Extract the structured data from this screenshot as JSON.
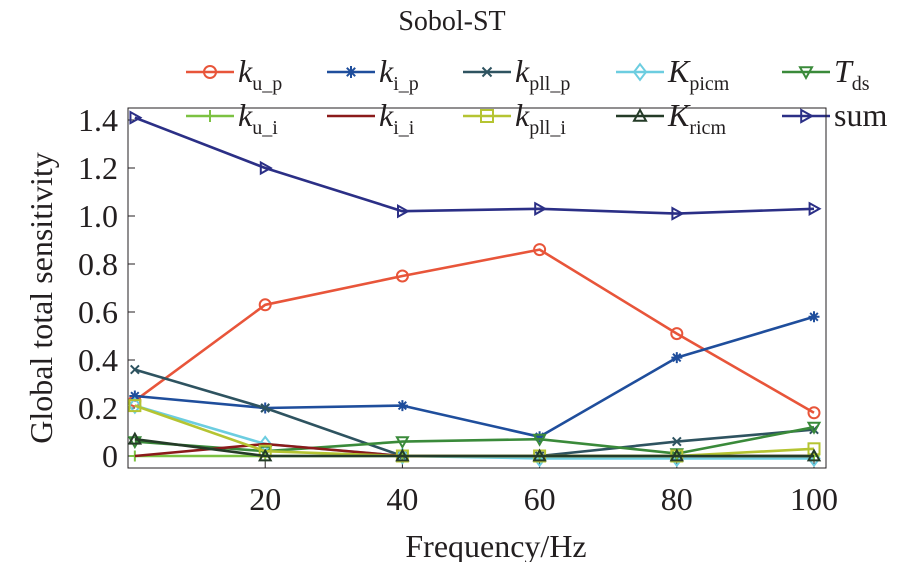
{
  "chart_data": {
    "type": "line",
    "title": "Sobol-ST",
    "xlabel": "Frequency/Hz",
    "ylabel": "Global total sensitivity",
    "xlim": [
      0,
      100
    ],
    "ylim": [
      0,
      1.4
    ],
    "xticks": [
      20,
      40,
      60,
      80,
      100
    ],
    "xtick_labels": [
      "20",
      "40",
      "60",
      "80",
      "100"
    ],
    "yticks": [
      0,
      0.2,
      0.4,
      0.6,
      0.8,
      1.0,
      1.2,
      1.4
    ],
    "ytick_labels": [
      "0",
      "0.2",
      "0.4",
      "0.6",
      "0.8",
      "1.0",
      "1.2",
      "1.4"
    ],
    "x": [
      1,
      20,
      40,
      60,
      80,
      100
    ],
    "legend_position": "top, 5 columns",
    "grid": false,
    "series": [
      {
        "name": "k",
        "sub": "u_p",
        "italic": true,
        "color": "#e8553a",
        "marker": "circle",
        "values": [
          0.23,
          0.63,
          0.75,
          0.86,
          0.51,
          0.18
        ]
      },
      {
        "name": "k",
        "sub": "i_p",
        "italic": true,
        "color": "#1f4e9c",
        "marker": "asterisk",
        "values": [
          0.25,
          0.2,
          0.21,
          0.08,
          0.41,
          0.58
        ]
      },
      {
        "name": "k",
        "sub": "pll_p",
        "italic": true,
        "color": "#2e5360",
        "marker": "x",
        "values": [
          0.36,
          0.2,
          0.0,
          0.0,
          0.06,
          0.11
        ]
      },
      {
        "name": "K",
        "sub": "picm",
        "italic": true,
        "color": "#6ccde0",
        "marker": "diamond",
        "values": [
          0.21,
          0.05,
          0.0,
          -0.01,
          -0.01,
          -0.01
        ]
      },
      {
        "name": "T",
        "sub": "ds",
        "italic": true,
        "color": "#3a8a3a",
        "marker": "triangle-down",
        "values": [
          0.06,
          0.02,
          0.06,
          0.07,
          0.01,
          0.12
        ]
      },
      {
        "name": "k",
        "sub": "u_i",
        "italic": true,
        "color": "#7cc242",
        "marker": "plus",
        "values": [
          0.0,
          0.0,
          0.0,
          0.0,
          0.0,
          0.0
        ]
      },
      {
        "name": "k",
        "sub": "i_i",
        "italic": true,
        "color": "#8b1a1a",
        "marker": "none",
        "values": [
          0.0,
          0.05,
          0.0,
          0.0,
          0.0,
          0.0
        ]
      },
      {
        "name": "k",
        "sub": "pll_i",
        "italic": true,
        "color": "#b5c432",
        "marker": "square",
        "values": [
          0.21,
          0.02,
          0.0,
          0.0,
          0.0,
          0.03
        ]
      },
      {
        "name": "K",
        "sub": "ricm",
        "italic": true,
        "color": "#243b27",
        "marker": "triangle-up",
        "values": [
          0.07,
          0.0,
          0.0,
          0.0,
          0.0,
          0.0
        ]
      },
      {
        "name": "sum",
        "sub": "",
        "italic": false,
        "color": "#2b2f86",
        "marker": "triangle-right",
        "values": [
          1.41,
          1.2,
          1.02,
          1.03,
          1.01,
          1.03
        ]
      }
    ]
  }
}
